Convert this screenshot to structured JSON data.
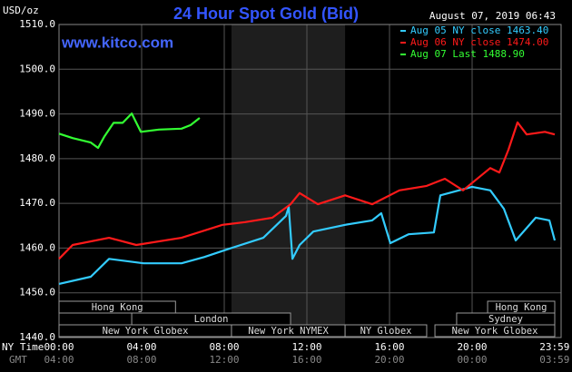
{
  "chart_data": {
    "type": "line",
    "title": "24 Hour Spot Gold (Bid)",
    "y_unit_label": "USD/oz",
    "watermark": "www.kitco.com",
    "timestamp": "August 07, 2019 06:43",
    "x_axis_label": "NY Time",
    "x2_axis_label": "GMT",
    "xlim": [
      0,
      24
    ],
    "ylim": [
      1440,
      1510
    ],
    "yticks": [
      {
        "value": 1440,
        "label": "1440.0"
      },
      {
        "value": 1450,
        "label": "1450.0"
      },
      {
        "value": 1460,
        "label": "1460.0"
      },
      {
        "value": 1470,
        "label": "1470.0"
      },
      {
        "value": 1480,
        "label": "1480.0"
      },
      {
        "value": 1490,
        "label": "1490.0"
      },
      {
        "value": 1500,
        "label": "1500.0"
      },
      {
        "value": 1510,
        "label": "1510.0"
      }
    ],
    "xticks": [
      {
        "value": 0,
        "label": "00:00"
      },
      {
        "value": 4,
        "label": "04:00"
      },
      {
        "value": 8,
        "label": "08:00"
      },
      {
        "value": 12,
        "label": "12:00"
      },
      {
        "value": 16,
        "label": "16:00"
      },
      {
        "value": 20,
        "label": "20:00"
      },
      {
        "value": 23.99,
        "label": "23:59"
      }
    ],
    "x2ticks": [
      {
        "value": 0,
        "label": "04:00"
      },
      {
        "value": 4,
        "label": "08:00"
      },
      {
        "value": 8,
        "label": "12:00"
      },
      {
        "value": 12,
        "label": "16:00"
      },
      {
        "value": 16,
        "label": "20:00"
      },
      {
        "value": 20,
        "label": "00:00"
      },
      {
        "value": 23.99,
        "label": "03:59"
      }
    ],
    "grid": true,
    "shaded_range": [
      8.35,
      13.85
    ],
    "series": [
      {
        "name": "Aug 05 NY close 1463.40",
        "color": "#33ccff",
        "x": [
          0,
          1.54,
          2.42,
          4.09,
          5.93,
          7.03,
          8.13,
          9.89,
          10.99,
          11.12,
          11.3,
          11.65,
          12.31,
          13.85,
          15.16,
          15.6,
          16.04,
          16.92,
          18.15,
          18.46,
          20.0,
          20.88,
          21.54,
          22.11,
          23.08,
          23.74,
          24
        ],
        "values": [
          1452,
          1453.6,
          1457.6,
          1456.6,
          1456.6,
          1458,
          1459.7,
          1462.3,
          1467.2,
          1469.2,
          1457.6,
          1460.7,
          1463.7,
          1465.2,
          1466.2,
          1467.8,
          1461.1,
          1463.1,
          1463.5,
          1471.8,
          1473.7,
          1472.9,
          1468.8,
          1461.7,
          1466.8,
          1466.2,
          1461.7
        ]
      },
      {
        "name": "Aug 06 NY close 1474.00",
        "color": "#ff1a1a",
        "x": [
          0,
          0.66,
          2.42,
          3.74,
          5.93,
          7.91,
          9.01,
          10.33,
          11.21,
          11.65,
          12.53,
          13.85,
          15.16,
          16.48,
          17.8,
          18.68,
          19.56,
          20.88,
          21.32,
          21.76,
          22.2,
          22.64,
          23.52,
          24
        ],
        "values": [
          1457.6,
          1460.7,
          1462.3,
          1460.7,
          1462.3,
          1465.2,
          1465.8,
          1466.8,
          1469.8,
          1472.3,
          1469.8,
          1471.8,
          1469.8,
          1472.9,
          1473.9,
          1475.5,
          1472.9,
          1477.9,
          1476.9,
          1482,
          1488.1,
          1485.4,
          1486,
          1485.4
        ]
      },
      {
        "name": "Aug 07 Last 1488.90",
        "color": "#33ff33",
        "x": [
          0,
          0.66,
          1.54,
          1.89,
          2.2,
          2.64,
          3.08,
          3.52,
          3.96,
          4.84,
          5.93,
          6.37,
          6.81
        ],
        "values": [
          1485.6,
          1484.6,
          1483.6,
          1482.4,
          1485,
          1488,
          1488,
          1490.1,
          1486,
          1486.5,
          1486.7,
          1487.5,
          1489.1
        ]
      }
    ],
    "sessions": [
      {
        "label": "Hong Kong",
        "start": 0,
        "end": 5.64,
        "row": 0
      },
      {
        "label": "London",
        "start": 3.52,
        "end": 11.21,
        "row": 1
      },
      {
        "label": "New York Globex",
        "start": 0,
        "end": 8.35,
        "row": 2
      },
      {
        "label": "New York NYMEX",
        "start": 8.35,
        "end": 13.85,
        "row": 2
      },
      {
        "label": "NY Globex",
        "start": 13.85,
        "end": 17.8,
        "row": 2
      },
      {
        "label": "Hong Kong",
        "start": 20.75,
        "end": 24,
        "row": 0
      },
      {
        "label": "Sydney",
        "start": 19.25,
        "end": 24,
        "row": 1
      },
      {
        "label": "New York Globex",
        "start": 18.2,
        "end": 24,
        "row": 2
      }
    ]
  }
}
